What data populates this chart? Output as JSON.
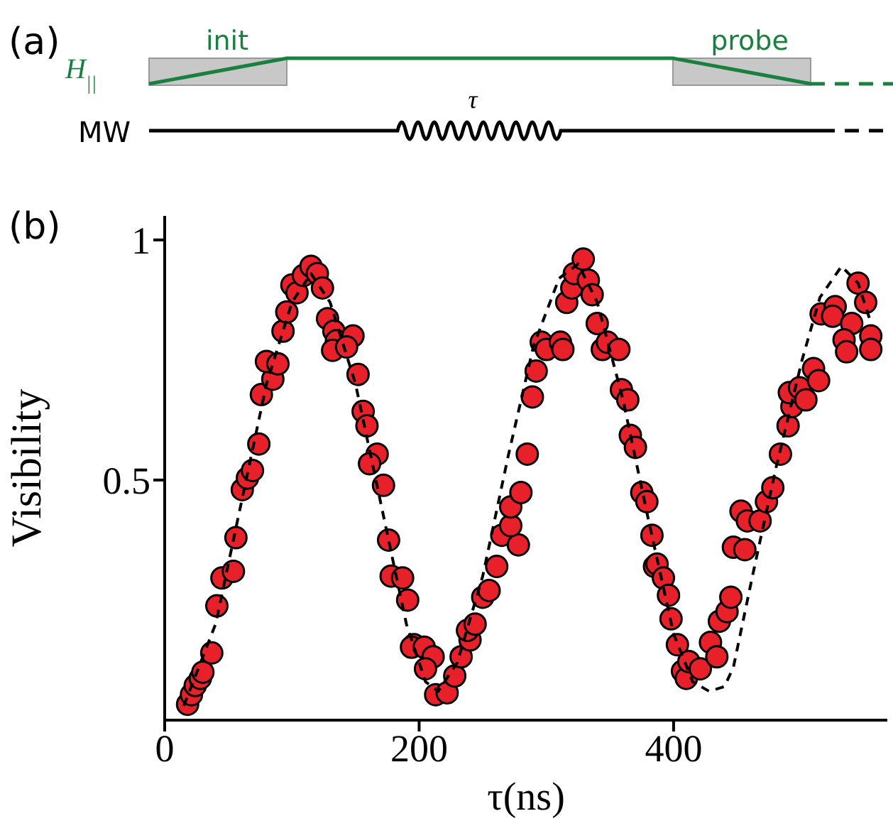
{
  "chart_data": {
    "type": "scatter",
    "xlabel": "τ(ns)",
    "ylabel": "Visibility",
    "xlim": [
      0,
      568
    ],
    "ylim": [
      0,
      1.05
    ],
    "xticks": [
      0,
      200,
      400
    ],
    "yticks": [
      0.5,
      1
    ],
    "annotations": [
      "(a)",
      "init",
      "probe",
      "H$_{||}$",
      "MW",
      "τ",
      "(b)"
    ],
    "series": [
      {
        "type": "scatter",
        "color": "#e8202a",
        "marker": "circle",
        "x": [
          18,
          21,
          24,
          28,
          30,
          37,
          41,
          45,
          54,
          56,
          61,
          65,
          69,
          74,
          76,
          85,
          80,
          89,
          93,
          96,
          100,
          104,
          109,
          115,
          120,
          124,
          128,
          133,
          135,
          132,
          148,
          143,
          152,
          156,
          159,
          167,
          161,
          172,
          176,
          178,
          187,
          191,
          196,
          194,
          204,
          211,
          205,
          213,
          222,
          228,
          233,
          240,
          238,
          244,
          250,
          255,
          261,
          265,
          278,
          272,
          272,
          280,
          285,
          289,
          292,
          296,
          300,
          311,
          313,
          316,
          320,
          322,
          329,
          333,
          336,
          340,
          344,
          348,
          357,
          359,
          364,
          366,
          370,
          375,
          379,
          383,
          385,
          387,
          392,
          396,
          398,
          403,
          407,
          410,
          412,
          421,
          429,
          434,
          436,
          442,
          445,
          447,
          456,
          453,
          458,
          468,
          473,
          478,
          484,
          490,
          493,
          491,
          499,
          504,
          510,
          514,
          516,
          527,
          525,
          540,
          534,
          536,
          545,
          551,
          555,
          555
        ],
        "values": [
          0.033,
          0.053,
          0.072,
          0.087,
          0.1,
          0.14,
          0.238,
          0.296,
          0.31,
          0.38,
          0.48,
          0.504,
          0.52,
          0.575,
          0.678,
          0.71,
          0.747,
          0.742,
          0.81,
          0.85,
          0.906,
          0.89,
          0.926,
          0.945,
          0.93,
          0.9,
          0.836,
          0.81,
          0.79,
          0.77,
          0.8,
          0.777,
          0.72,
          0.643,
          0.613,
          0.554,
          0.534,
          0.489,
          0.375,
          0.3,
          0.296,
          0.25,
          0.157,
          0.152,
          0.152,
          0.132,
          0.107,
          0.053,
          0.057,
          0.092,
          0.132,
          0.167,
          0.187,
          0.2,
          0.256,
          0.27,
          0.32,
          0.385,
          0.365,
          0.405,
          0.444,
          0.474,
          0.554,
          0.673,
          0.727,
          0.787,
          0.772,
          0.787,
          0.772,
          0.87,
          0.9,
          0.93,
          0.96,
          0.916,
          0.886,
          0.826,
          0.772,
          0.787,
          0.772,
          0.688,
          0.667,
          0.593,
          0.568,
          0.474,
          0.455,
          0.385,
          0.32,
          0.325,
          0.296,
          0.26,
          0.211,
          0.157,
          0.102,
          0.087,
          0.122,
          0.107,
          0.162,
          0.132,
          0.206,
          0.226,
          0.256,
          0.36,
          0.355,
          0.435,
          0.415,
          0.415,
          0.455,
          0.484,
          0.554,
          0.613,
          0.653,
          0.682,
          0.692,
          0.667,
          0.732,
          0.707,
          0.846,
          0.861,
          0.841,
          0.826,
          0.792,
          0.767,
          0.91,
          0.87,
          0.8,
          0.772
        ]
      },
      {
        "type": "line",
        "color": "#000000",
        "line_style": "dashed",
        "marker": "none",
        "x": [
          15,
          40,
          60,
          80,
          100,
          115,
          130,
          150,
          170,
          190,
          205,
          215,
          230,
          250,
          270,
          290,
          310,
          325,
          340,
          360,
          380,
          400,
          415,
          428,
          440,
          447,
          462,
          480,
          501,
          515,
          532,
          545,
          556
        ],
        "values": [
          0.03,
          0.2,
          0.45,
          0.7,
          0.87,
          0.93,
          0.87,
          0.7,
          0.45,
          0.2,
          0.08,
          0.06,
          0.12,
          0.3,
          0.55,
          0.78,
          0.92,
          0.95,
          0.87,
          0.67,
          0.42,
          0.18,
          0.08,
          0.06,
          0.07,
          0.11,
          0.3,
          0.52,
          0.75,
          0.88,
          0.945,
          0.91,
          0.82
        ]
      }
    ]
  }
}
